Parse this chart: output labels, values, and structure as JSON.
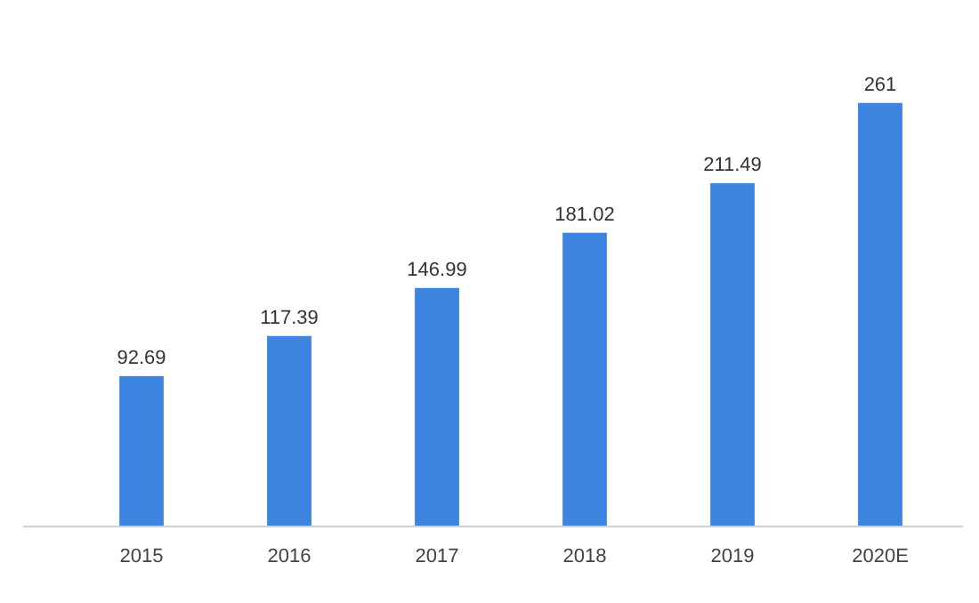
{
  "chart_data": {
    "type": "bar",
    "categories": [
      "2015",
      "2016",
      "2017",
      "2018",
      "2019",
      "2020E"
    ],
    "values": [
      92.69,
      117.39,
      146.99,
      181.02,
      211.49,
      261
    ],
    "color": "#3d85e0",
    "data_labels": true
  }
}
